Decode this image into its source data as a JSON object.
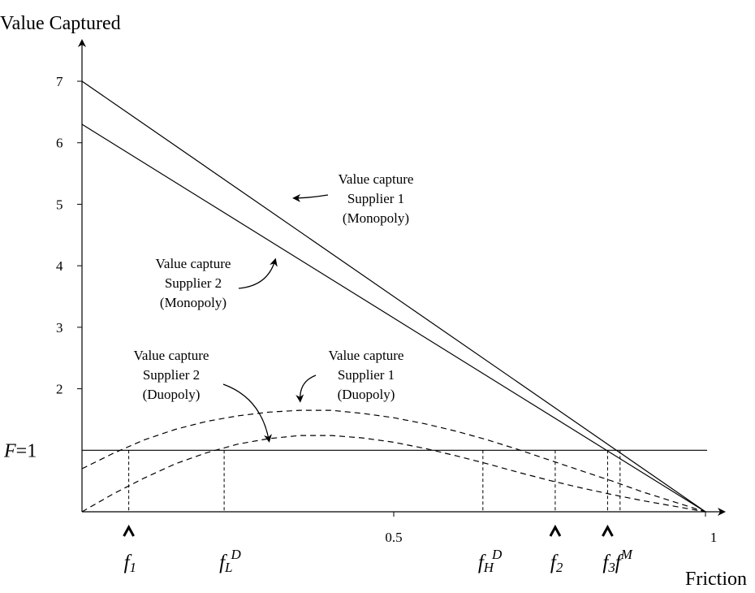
{
  "chart_data": {
    "type": "line",
    "xlabel": "Friction",
    "ylabel": "Value Captured",
    "xlim": [
      0,
      1
    ],
    "ylim": [
      0,
      7
    ],
    "x_ticks": [
      {
        "value": 0.5,
        "label": "0.5"
      },
      {
        "value": 1,
        "label": "1"
      }
    ],
    "y_ticks": [
      {
        "value": 2,
        "label": "2"
      },
      {
        "value": 3,
        "label": "3"
      },
      {
        "value": 4,
        "label": "4"
      },
      {
        "value": 5,
        "label": "5"
      },
      {
        "value": 6,
        "label": "6"
      },
      {
        "value": 7,
        "label": "7"
      }
    ],
    "grid": false,
    "series": [
      {
        "style": "solid",
        "x": [
          0,
          1
        ],
        "y": [
          7.0,
          0
        ]
      },
      {
        "style": "solid",
        "x": [
          0,
          1
        ],
        "y": [
          6.3,
          0
        ]
      },
      {
        "style": "dashed",
        "x": [
          0,
          0.05,
          0.1,
          0.15,
          0.2,
          0.25,
          0.3,
          0.35,
          0.4,
          0.45,
          0.5,
          0.55,
          0.6,
          0.65,
          0.7,
          0.75,
          0.8,
          0.85,
          0.9,
          0.95,
          1.0
        ],
        "y": [
          0.7,
          0.95,
          1.17,
          1.34,
          1.47,
          1.56,
          1.62,
          1.65,
          1.65,
          1.6,
          1.53,
          1.43,
          1.31,
          1.17,
          1.01,
          0.84,
          0.67,
          0.5,
          0.32,
          0.16,
          0
        ]
      },
      {
        "style": "dashed",
        "x": [
          0,
          0.05,
          0.1,
          0.15,
          0.2,
          0.25,
          0.3,
          0.35,
          0.4,
          0.45,
          0.5,
          0.55,
          0.6,
          0.65,
          0.7,
          0.75,
          0.8,
          0.85,
          0.9,
          0.95,
          1.0
        ],
        "y": [
          0,
          0.29,
          0.55,
          0.78,
          0.96,
          1.1,
          1.19,
          1.24,
          1.24,
          1.2,
          1.13,
          1.03,
          0.91,
          0.78,
          0.64,
          0.51,
          0.39,
          0.28,
          0.18,
          0.09,
          0
        ]
      },
      {
        "style": "solid",
        "x": [
          0,
          1
        ],
        "y": [
          1,
          1
        ]
      }
    ],
    "reference_line": {
      "value": 1,
      "label_main": "F",
      "label_rest": "=1"
    },
    "annotations": [
      {
        "target_x": 0.34,
        "target_y": 5.1,
        "lines": [
          "Value capture",
          "Supplier 1",
          "(Monopoly)"
        ]
      },
      {
        "target_x": 0.31,
        "target_y": 4.1,
        "lines": [
          "Value capture",
          "Supplier 2",
          "(Monopoly)"
        ]
      },
      {
        "target_x": 0.35,
        "target_y": 1.8,
        "lines": [
          "Value capture",
          "Supplier 1",
          "(Duopoly)"
        ]
      },
      {
        "target_x": 0.3,
        "target_y": 1.15,
        "lines": [
          "Value capture",
          "Supplier 2",
          "(Duopoly)"
        ]
      }
    ],
    "friction_markers": [
      {
        "x": 0.075,
        "base": "f",
        "sub": "1",
        "sup": "",
        "hat": true
      },
      {
        "x": 0.228,
        "base": "f",
        "sub": "L",
        "sup": "D",
        "hat": false
      },
      {
        "x": 0.643,
        "base": "f",
        "sub": "H",
        "sup": "D",
        "hat": false
      },
      {
        "x": 0.759,
        "base": "f",
        "sub": "2",
        "sup": "",
        "hat": true
      },
      {
        "x": 0.843,
        "base": "f",
        "sub": "3",
        "sup": "",
        "hat": true
      },
      {
        "x": 0.863,
        "base": "f",
        "sub": "",
        "sup": "M",
        "hat": false
      }
    ]
  }
}
